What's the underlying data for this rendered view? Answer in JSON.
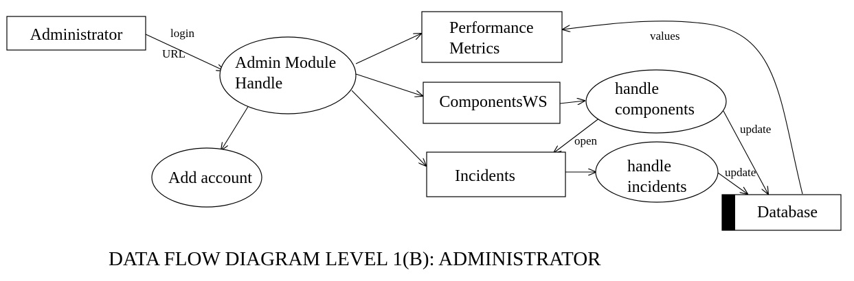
{
  "caption": "DATA FLOW DIAGRAM LEVEL 1(B): ADMINISTRATOR",
  "nodes": {
    "administrator": "Administrator",
    "admin_module": [
      "Admin Module",
      "Handle"
    ],
    "add_account": "Add account",
    "performance_metrics": [
      "Performance",
      "Metrics"
    ],
    "components_ws": "ComponentsWS",
    "handle_components": [
      "handle",
      "components"
    ],
    "incidents": "Incidents",
    "handle_incidents": [
      "handle",
      "incidents"
    ],
    "database": "Database"
  },
  "flows": {
    "login": "login",
    "url": "URL",
    "values": "values",
    "update_components": "update",
    "open": "open",
    "update_incidents": "update"
  },
  "colors": {
    "stroke": "#000000",
    "background": "#ffffff",
    "database_bar": "#000000"
  }
}
